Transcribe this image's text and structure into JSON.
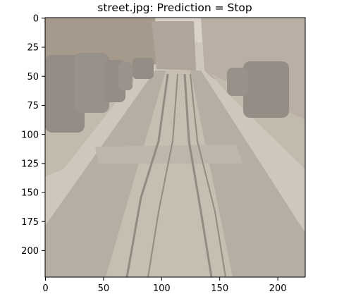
{
  "title": "street.jpg: Prediction = Stop",
  "image": {
    "content": "washed-out photo of a cobblestone street lined with parked cars and buildings",
    "palette": {
      "tint": "#cdc4b8",
      "road": "#a39d92",
      "cobble_light": "#bdb5a7",
      "sidewalk": "#b8b0a4",
      "building_left": "#8d7f71",
      "building_right": "#a99f94",
      "sky": "#d9d4cc",
      "car": "#6f6a66",
      "crack": "#6d675f"
    }
  },
  "axes": {
    "x_ticks": [
      "0",
      "50",
      "100",
      "150",
      "200"
    ],
    "y_ticks": [
      "0",
      "25",
      "50",
      "75",
      "100",
      "125",
      "150",
      "175",
      "200"
    ],
    "xlim": [
      0,
      224
    ],
    "ylim": [
      224,
      0
    ]
  }
}
